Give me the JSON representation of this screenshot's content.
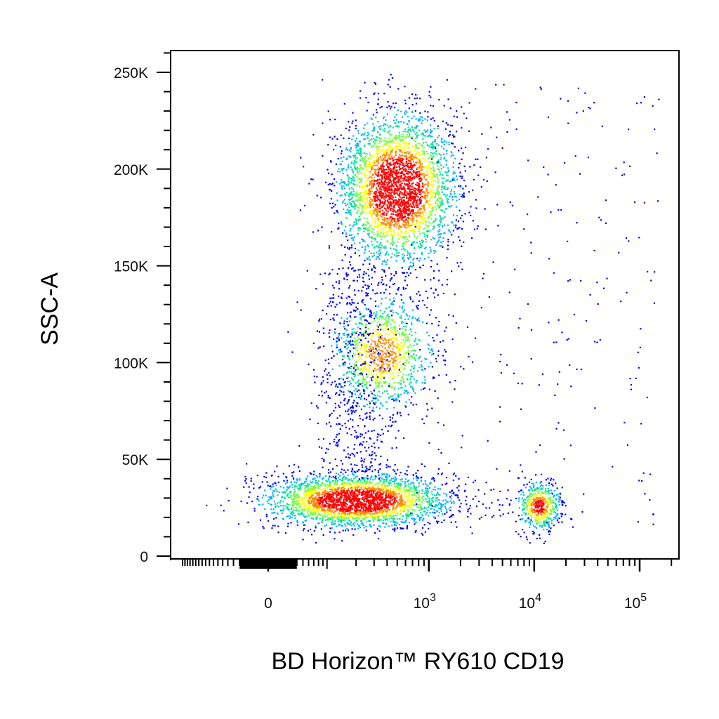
{
  "chart_data": {
    "type": "scatter",
    "plot_style": "pseudocolor density dot plot",
    "xlabel": "BD Horizon™ RY610 CD19",
    "ylabel": "SSC-A",
    "x_scale": "biexponential",
    "y_scale": "linear",
    "xlim": [
      -200,
      200000
    ],
    "ylim": [
      0,
      262144
    ],
    "x_ticks": [
      {
        "value": 0,
        "label": "0"
      },
      {
        "value": 1000,
        "label": "10",
        "exponent": "3"
      },
      {
        "value": 10000,
        "label": "10",
        "exponent": "4"
      },
      {
        "value": 100000,
        "label": "10",
        "exponent": "5"
      }
    ],
    "y_ticks": [
      {
        "value": 0,
        "label": "0"
      },
      {
        "value": 50000,
        "label": "50K"
      },
      {
        "value": 100000,
        "label": "100K"
      },
      {
        "value": 150000,
        "label": "150K"
      },
      {
        "value": 200000,
        "label": "200K"
      },
      {
        "value": 250000,
        "label": "250K"
      }
    ],
    "grid": false,
    "legend": "none",
    "density_colors": [
      "#0000ff",
      "#00b4ff",
      "#00e0a0",
      "#70ff40",
      "#ffff00",
      "#ff8800",
      "#ff0000"
    ],
    "populations": [
      {
        "cd19_center": 500,
        "ssc_center": 190000,
        "cd19_range": [
          40,
          1500
        ],
        "ssc_range": [
          140000,
          240000
        ],
        "relative_density": 1.0
      },
      {
        "cd19_center": 350,
        "ssc_center": 105000,
        "cd19_range": [
          30,
          900
        ],
        "ssc_range": [
          60000,
          140000
        ],
        "relative_density": 0.35
      },
      {
        "cd19_center": 200,
        "ssc_center": 29000,
        "cd19_range": [
          -200,
          800
        ],
        "ssc_range": [
          15000,
          50000
        ],
        "relative_density": 1.0
      },
      {
        "cd19_center": 11000,
        "ssc_center": 26000,
        "cd19_range": [
          6000,
          20000
        ],
        "ssc_range": [
          18000,
          50000
        ],
        "relative_density": 0.6
      }
    ]
  }
}
